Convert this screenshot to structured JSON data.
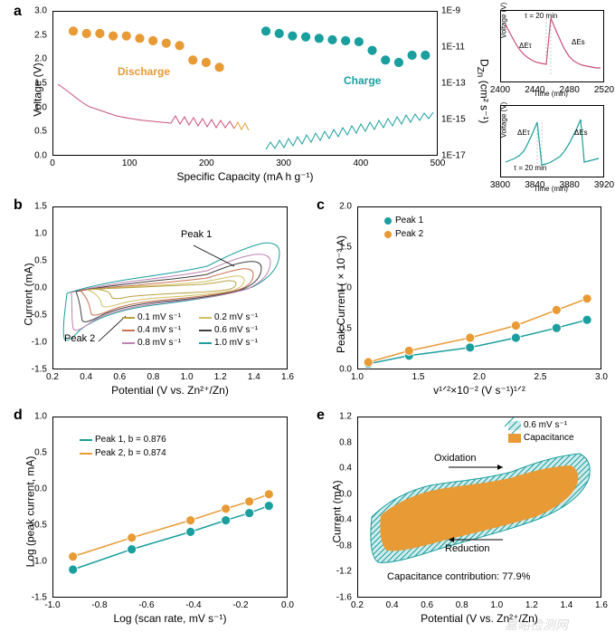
{
  "panel_a": {
    "label": "a",
    "main": {
      "x_label": "Specific Capacity (mA h g⁻¹)",
      "y_label_left": "Voltage (V)",
      "y_label_right": "D_Zn (cm² s⁻¹)",
      "discharge_label": "Discharge",
      "charge_label": "Charge",
      "discharge_color": "#e89a35",
      "charge_color": "#1a9e9e",
      "voltage_line_color_left": "#c94f7c",
      "voltage_line_color_right": "#1a9e9e",
      "x_ticks": [
        "0",
        "100",
        "200",
        "300",
        "400",
        "500"
      ],
      "y_ticks_left": [
        "0.0",
        "0.5",
        "1.0",
        "1.5",
        "2.0",
        "2.5",
        "3.0"
      ],
      "y_ticks_right": [
        "1E-17",
        "1E-15",
        "1E-13",
        "1E-11",
        "1E-9"
      ],
      "discharge_points": [
        [
          30,
          2.6
        ],
        [
          50,
          2.55
        ],
        [
          70,
          2.55
        ],
        [
          90,
          2.5
        ],
        [
          110,
          2.5
        ],
        [
          130,
          2.45
        ],
        [
          150,
          2.4
        ],
        [
          170,
          2.35
        ],
        [
          190,
          2.3
        ],
        [
          210,
          2.0
        ],
        [
          230,
          1.95
        ],
        [
          250,
          1.85
        ]
      ],
      "charge_points": [
        [
          320,
          2.6
        ],
        [
          340,
          2.55
        ],
        [
          360,
          2.5
        ],
        [
          380,
          2.48
        ],
        [
          400,
          2.45
        ],
        [
          420,
          2.42
        ],
        [
          440,
          2.4
        ],
        [
          460,
          2.38
        ],
        [
          480,
          2.2
        ],
        [
          500,
          2.0
        ],
        [
          520,
          1.95
        ],
        [
          540,
          2.1
        ],
        [
          560,
          2.1
        ]
      ]
    },
    "inset_top": {
      "x_label": "Time (min)",
      "y_label": "Voltage (V)",
      "tau_label": "τ = 20 min",
      "dEt_label": "ΔEτ",
      "dEs_label": "ΔEs",
      "line_color": "#c94f7c",
      "x_ticks": [
        "2400",
        "2440",
        "2480",
        "2520"
      ],
      "y_ticks": [
        "0.7",
        "0.8",
        "0.9"
      ]
    },
    "inset_bottom": {
      "x_label": "Time (min)",
      "y_label": "Voltage (V)",
      "tau_label": "τ = 20 min",
      "dEt_label": "ΔEτ",
      "dEs_label": "ΔEs",
      "line_color": "#1a9e9e",
      "x_ticks": [
        "3800",
        "3840",
        "3880",
        "3920"
      ],
      "y_ticks": [
        "0.4",
        "0.5",
        "0.6"
      ]
    }
  },
  "panel_b": {
    "label": "b",
    "x_label": "Potential (V vs. Zn²⁺/Zn)",
    "y_label": "Current (mA)",
    "peak1_label": "Peak 1",
    "peak2_label": "Peak 2",
    "x_ticks": [
      "0.2",
      "0.4",
      "0.6",
      "0.8",
      "1.0",
      "1.2",
      "1.4",
      "1.6"
    ],
    "y_ticks": [
      "-1.5",
      "-1.0",
      "-0.5",
      "0.0",
      "0.5",
      "1.0",
      "1.5"
    ],
    "legend": [
      {
        "label": "0.1 mV s⁻¹",
        "color": "#b8a040"
      },
      {
        "label": "0.2 mV s⁻¹",
        "color": "#d0c060"
      },
      {
        "label": "0.4 mV s⁻¹",
        "color": "#c97050"
      },
      {
        "label": "0.6 mV s⁻¹",
        "color": "#404040"
      },
      {
        "label": "0.8 mV s⁻¹",
        "color": "#c080b0"
      },
      {
        "label": "1.0 mV s⁻¹",
        "color": "#1a9e9e"
      }
    ]
  },
  "panel_c": {
    "label": "c",
    "x_label": "v¹ᐟ²×10⁻² (V s⁻¹)¹ᐟ²",
    "y_label": "Peak Current ( × 10⁻³ A)",
    "x_ticks": [
      "1.0",
      "1.5",
      "2.0",
      "2.5",
      "3.0"
    ],
    "y_ticks": [
      "0.0",
      "0.5",
      "1.0",
      "1.5",
      "2.0"
    ],
    "legend": [
      {
        "label": "Peak 1",
        "color": "#1a9e9e"
      },
      {
        "label": "Peak 2",
        "color": "#e89a35"
      }
    ],
    "peak1_points": [
      [
        1.0,
        0.08
      ],
      [
        1.4,
        0.18
      ],
      [
        2.0,
        0.28
      ],
      [
        2.45,
        0.4
      ],
      [
        2.85,
        0.52
      ],
      [
        3.15,
        0.62
      ]
    ],
    "peak2_points": [
      [
        1.0,
        0.1
      ],
      [
        1.4,
        0.24
      ],
      [
        2.0,
        0.4
      ],
      [
        2.45,
        0.55
      ],
      [
        2.85,
        0.74
      ],
      [
        3.15,
        0.88
      ]
    ]
  },
  "panel_d": {
    "label": "d",
    "x_label": "Log (scan rate, mV s⁻¹)",
    "y_label": "Log (peak current, mA)",
    "x_ticks": [
      "-1.0",
      "-0.8",
      "-0.6",
      "-0.4",
      "-0.2",
      "0.0"
    ],
    "y_ticks": [
      "-1.5",
      "-1.0",
      "-0.5",
      "0.0",
      "0.5",
      "1.0"
    ],
    "legend": [
      {
        "label": "Peak 1, b = 0.876",
        "color": "#1a9e9e"
      },
      {
        "label": "Peak 2, b = 0.874",
        "color": "#e89a35"
      }
    ],
    "peak1_points": [
      [
        -1.0,
        -1.1
      ],
      [
        -0.7,
        -0.82
      ],
      [
        -0.4,
        -0.58
      ],
      [
        -0.22,
        -0.42
      ],
      [
        -0.1,
        -0.32
      ],
      [
        0.0,
        -0.22
      ]
    ],
    "peak2_points": [
      [
        -1.0,
        -0.92
      ],
      [
        -0.7,
        -0.66
      ],
      [
        -0.4,
        -0.42
      ],
      [
        -0.22,
        -0.26
      ],
      [
        -0.1,
        -0.16
      ],
      [
        0.0,
        -0.06
      ]
    ]
  },
  "panel_e": {
    "label": "e",
    "x_label": "Potential (V vs. Zn²⁺/Zn)",
    "y_label": "Current (mA)",
    "x_ticks": [
      "0.2",
      "0.4",
      "0.6",
      "0.8",
      "1.0",
      "1.2",
      "1.4",
      "1.6"
    ],
    "y_ticks": [
      "-1.6",
      "-1.2",
      "-0.8",
      "-0.4",
      "0.0",
      "0.4",
      "0.8",
      "1.2"
    ],
    "oxidation_label": "Oxidation",
    "reduction_label": "Reduction",
    "contribution_label": "Capacitance contribution: 77.9%",
    "legend": [
      {
        "label": "0.6 mV s⁻¹",
        "color": "#1a9e9e",
        "type": "hatch"
      },
      {
        "label": "Capacitance",
        "color": "#e89a35",
        "type": "solid"
      }
    ]
  },
  "watermark": "嘉峪检测网"
}
